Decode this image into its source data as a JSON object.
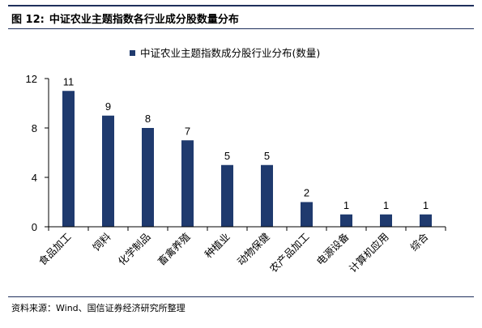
{
  "figure": {
    "number": "图 12:",
    "title": "中证农业主题指数各行业成分股数量分布"
  },
  "source_note": "资料来源：Wind、国信证券经济研究所整理",
  "chart_data": {
    "type": "bar",
    "categories": [
      "食品加工",
      "饲料",
      "化学制品",
      "畜禽养殖",
      "种植业",
      "动物保健",
      "农产品加工",
      "电源设备",
      "计算机应用",
      "综合"
    ],
    "series": [
      {
        "name": "中证农业主题指数成分股行业分布(数量)",
        "values": [
          11,
          9,
          8,
          7,
          5,
          5,
          2,
          1,
          1,
          1
        ]
      }
    ],
    "data_labels": [
      "11",
      "9",
      "8",
      "7",
      "5",
      "5",
      "2",
      "1",
      "1",
      "1"
    ],
    "yticks": [
      0,
      4,
      8,
      12
    ],
    "ylim": [
      0,
      12
    ],
    "legend_position": "top",
    "grid": false,
    "bar_color": "#1f3a6e"
  }
}
